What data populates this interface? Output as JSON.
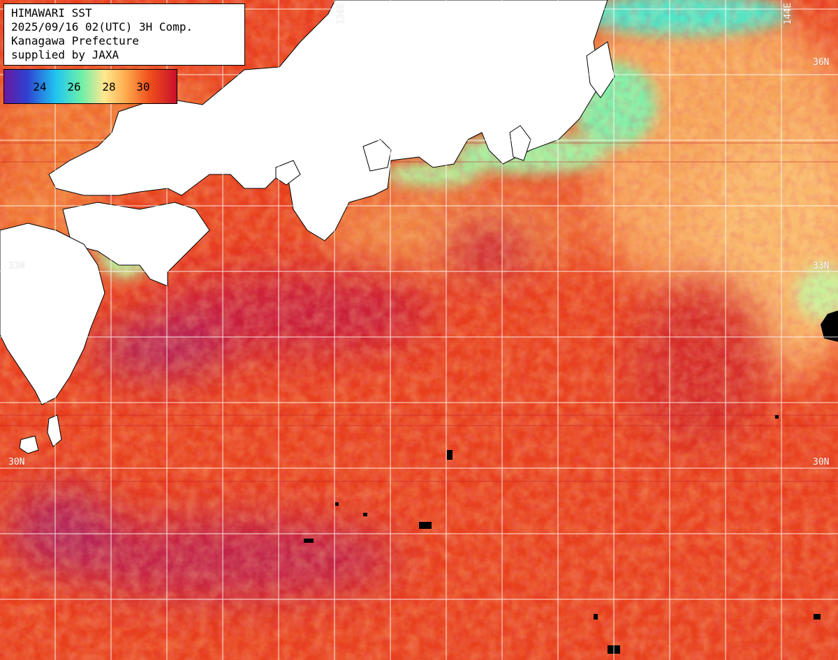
{
  "header": {
    "line1": "HIMAWARI SST",
    "line2": "2025/09/16 02(UTC) 3H Comp.",
    "line3": "Kanagawa Prefecture",
    "line4": "supplied by JAXA"
  },
  "colorbar": {
    "ticks": [
      "24",
      "26",
      "28",
      "30"
    ],
    "colors": [
      "#6a1aa0",
      "#2f3fd0",
      "#1fc6f0",
      "#6ef0a8",
      "#ffe890",
      "#ffae50",
      "#f0501c",
      "#c8102a"
    ]
  },
  "grid_labels": {
    "lon_136": "136E",
    "lon_144": "144E",
    "lat_36_right": "36N",
    "lat_33_left": "33N",
    "lat_33_right": "33N",
    "lat_30_left": "30N",
    "lat_30_right": "30N"
  },
  "colors": {
    "land": "#ffffff",
    "grid": "#ffffff",
    "missing": "#000000",
    "sea_warm": "#e8401c",
    "sea_hot": "#c81e26",
    "sea_cool": "#f4a060",
    "sea_coastal": "#8ee8a0"
  }
}
